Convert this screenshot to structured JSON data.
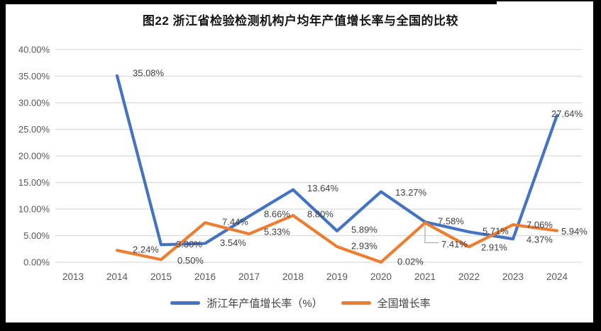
{
  "page": {
    "title": "图22 浙江省检验检测机构户均年产值增长率与全国的比较"
  },
  "chart_data": {
    "type": "line",
    "title": "图22 浙江省检验检测机构户均年产值增长率与全国的比较",
    "categories": [
      "2013",
      "2014",
      "2015",
      "2016",
      "2017",
      "2018",
      "2019",
      "2020",
      "2021",
      "2022",
      "2023",
      "2024"
    ],
    "series": [
      {
        "name": "浙江年产值增长率（%）",
        "color": "#4472C4",
        "values": [
          null,
          35.08,
          3.3,
          3.54,
          8.66,
          13.64,
          5.89,
          13.27,
          7.58,
          5.71,
          4.37,
          27.64
        ],
        "labels": [
          "",
          "35.08%",
          "3.30%",
          "3.54%",
          "8.66%",
          "13.64%",
          "5.89%",
          "13.27%",
          "7.58%",
          "5.71%",
          "4.37%",
          "27.64%"
        ]
      },
      {
        "name": "全国增长率",
        "color": "#ED7D31",
        "values": [
          null,
          2.24,
          0.5,
          7.44,
          5.33,
          8.8,
          2.93,
          0.02,
          7.41,
          2.91,
          7.06,
          5.94
        ],
        "labels": [
          "",
          "2.24%",
          "0.50%",
          "7.44%",
          "5.33%",
          "8.80%",
          "2.93%",
          "0.02%",
          "7.41%",
          "2.91%",
          "7.06%",
          "5.94%"
        ]
      }
    ],
    "y_axis": {
      "min": 0,
      "max": 40,
      "step": 5,
      "tick_labels": [
        "0.00%",
        "5.00%",
        "10.00%",
        "15.00%",
        "20.00%",
        "25.00%",
        "30.00%",
        "35.00%",
        "40.00%"
      ]
    },
    "x_axis": {
      "tick_labels": [
        "2013",
        "2014",
        "2015",
        "2016",
        "2017",
        "2018",
        "2019",
        "2020",
        "2021",
        "2022",
        "2023",
        "2024"
      ]
    },
    "grid": true,
    "data_labels": true,
    "legend_position": "bottom",
    "colors": {
      "gridline": "#D9D9D9",
      "tick_text": "#595959",
      "label_text": "#404040",
      "leader_line": "#A6A6A6"
    }
  },
  "legend": {
    "items": [
      {
        "label": "浙江年产值增长率（%）",
        "color": "#4472C4"
      },
      {
        "label": "全国增长率",
        "color": "#ED7D31"
      }
    ]
  }
}
